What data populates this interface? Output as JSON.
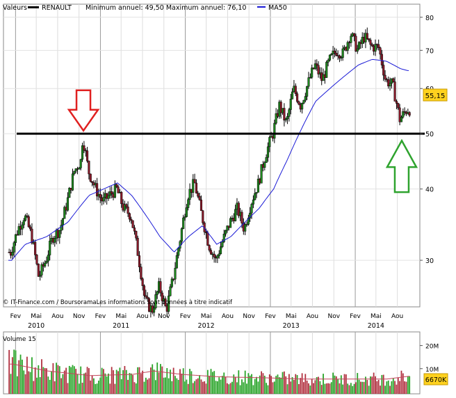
{
  "chart_data": [
    {
      "type": "candlestick",
      "legend": {
        "series_label": "Valeurs",
        "symbol": "RENAULT",
        "min_max_text": "Minimum annuel: 49,50 Maximum annuel: 76,10",
        "ma_label": "MA50"
      },
      "scale": "log",
      "ylim": [
        25,
        82
      ],
      "yticks": [
        "80",
        "70",
        "60",
        "50",
        "40",
        "30"
      ],
      "x_month_ticks": [
        "Fev",
        "Mai",
        "Aou",
        "Nov",
        "Fev",
        "Mai",
        "Aou",
        "Nov",
        "Fev",
        "Mai",
        "Aou",
        "Nov",
        "Fev",
        "Mai",
        "Aou",
        "Nov",
        "Fev",
        "Mai",
        "Aou"
      ],
      "x_year_labels": [
        "2010",
        "2011",
        "2012",
        "2013",
        "2014"
      ],
      "last_price": "55,15",
      "support_level": 50,
      "credit": "© IT-Finance.com / BoursoramaLes informations sont données à titre indicatif",
      "close_path": [
        [
          "2010-01",
          31
        ],
        [
          "2010-02",
          34
        ],
        [
          "2010-03",
          36
        ],
        [
          "2010-04",
          33
        ],
        [
          "2010-05",
          28
        ],
        [
          "2010-06",
          30
        ],
        [
          "2010-07",
          33
        ],
        [
          "2010-08",
          34
        ],
        [
          "2010-09",
          38
        ],
        [
          "2010-10",
          43
        ],
        [
          "2010-11",
          45
        ],
        [
          "2010-11-20",
          49.5
        ],
        [
          "2010-12",
          43
        ],
        [
          "2011-01",
          40
        ],
        [
          "2011-02",
          38
        ],
        [
          "2011-03",
          39
        ],
        [
          "2011-04",
          40
        ],
        [
          "2011-05",
          37
        ],
        [
          "2011-06",
          36
        ],
        [
          "2011-07",
          31
        ],
        [
          "2011-08",
          25.5
        ],
        [
          "2011-09",
          24.5
        ],
        [
          "2011-10",
          27
        ],
        [
          "2011-11",
          24.5
        ],
        [
          "2011-12",
          28
        ],
        [
          "2012-01",
          33
        ],
        [
          "2012-02",
          39
        ],
        [
          "2012-03",
          41
        ],
        [
          "2012-04",
          36
        ],
        [
          "2012-05",
          32
        ],
        [
          "2012-06",
          30
        ],
        [
          "2012-07",
          32.5
        ],
        [
          "2012-08",
          35
        ],
        [
          "2012-09",
          37
        ],
        [
          "2012-10",
          34
        ],
        [
          "2012-11",
          38
        ],
        [
          "2012-12",
          41
        ],
        [
          "2013-01",
          46
        ],
        [
          "2013-02",
          50
        ],
        [
          "2013-03",
          56
        ],
        [
          "2013-04",
          52
        ],
        [
          "2013-05",
          60
        ],
        [
          "2013-06",
          56
        ],
        [
          "2013-07",
          61
        ],
        [
          "2013-08",
          66
        ],
        [
          "2013-09",
          62
        ],
        [
          "2013-10",
          67
        ],
        [
          "2013-11",
          70
        ],
        [
          "2013-12",
          69
        ],
        [
          "2014-01",
          75
        ],
        [
          "2014-02",
          70
        ],
        [
          "2014-03",
          74
        ],
        [
          "2014-04",
          71
        ],
        [
          "2014-05",
          71
        ],
        [
          "2014-06",
          62
        ],
        [
          "2014-07",
          61
        ],
        [
          "2014-08",
          53
        ],
        [
          "2014-09",
          55.15
        ]
      ],
      "ma50_path": [
        [
          "2010-01",
          30
        ],
        [
          "2010-03",
          32
        ],
        [
          "2010-06",
          33
        ],
        [
          "2010-09",
          35
        ],
        [
          "2010-12",
          39
        ],
        [
          "2011-02",
          40
        ],
        [
          "2011-04",
          41
        ],
        [
          "2011-06",
          39
        ],
        [
          "2011-08",
          36
        ],
        [
          "2011-10",
          33
        ],
        [
          "2011-12",
          31
        ],
        [
          "2012-02",
          33
        ],
        [
          "2012-04",
          34.5
        ],
        [
          "2012-06",
          32
        ],
        [
          "2012-08",
          33
        ],
        [
          "2012-10",
          35
        ],
        [
          "2012-12",
          37
        ],
        [
          "2013-02",
          40
        ],
        [
          "2013-04",
          45
        ],
        [
          "2013-06",
          51
        ],
        [
          "2013-08",
          57
        ],
        [
          "2013-10",
          60
        ],
        [
          "2013-12",
          63
        ],
        [
          "2014-02",
          66
        ],
        [
          "2014-04",
          67.5
        ],
        [
          "2014-06",
          67
        ],
        [
          "2014-08",
          65
        ],
        [
          "2014-09",
          64.5
        ]
      ]
    },
    {
      "type": "bar",
      "title": "Volume 15",
      "ylim": [
        0,
        25000000
      ],
      "yticks": [
        "20M",
        "10M"
      ],
      "last_volume": "6670K",
      "volume_path": [
        [
          "2010-01",
          12
        ],
        [
          "2010-06",
          9
        ],
        [
          "2010-12",
          7
        ],
        [
          "2011-06",
          7.5
        ],
        [
          "2011-09",
          9
        ],
        [
          "2012-01",
          7.5
        ],
        [
          "2012-06",
          6.5
        ],
        [
          "2013-01",
          6
        ],
        [
          "2013-06",
          5.5
        ],
        [
          "2014-01",
          5.5
        ],
        [
          "2014-06",
          5.5
        ],
        [
          "2014-09",
          6.7
        ]
      ]
    }
  ]
}
